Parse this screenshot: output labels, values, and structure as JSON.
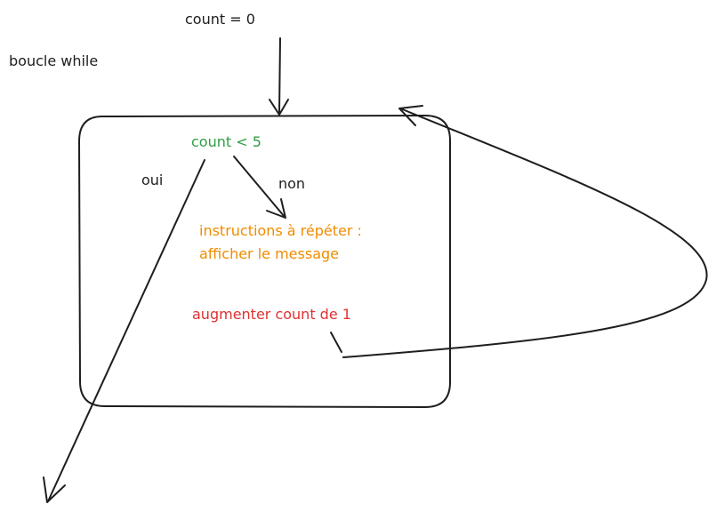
{
  "labels": {
    "init": "count = 0",
    "loop_name": "boucle while",
    "condition": "count < 5",
    "yes": "oui",
    "no": "non",
    "body_line1": "instructions à répéter :",
    "body_line2": "afficher le message",
    "increment": "augmenter count de 1"
  },
  "colors": {
    "ink": "#1e1e1e",
    "condition": "#2f9e44",
    "body": "#f08c00",
    "increment": "#e03131"
  }
}
